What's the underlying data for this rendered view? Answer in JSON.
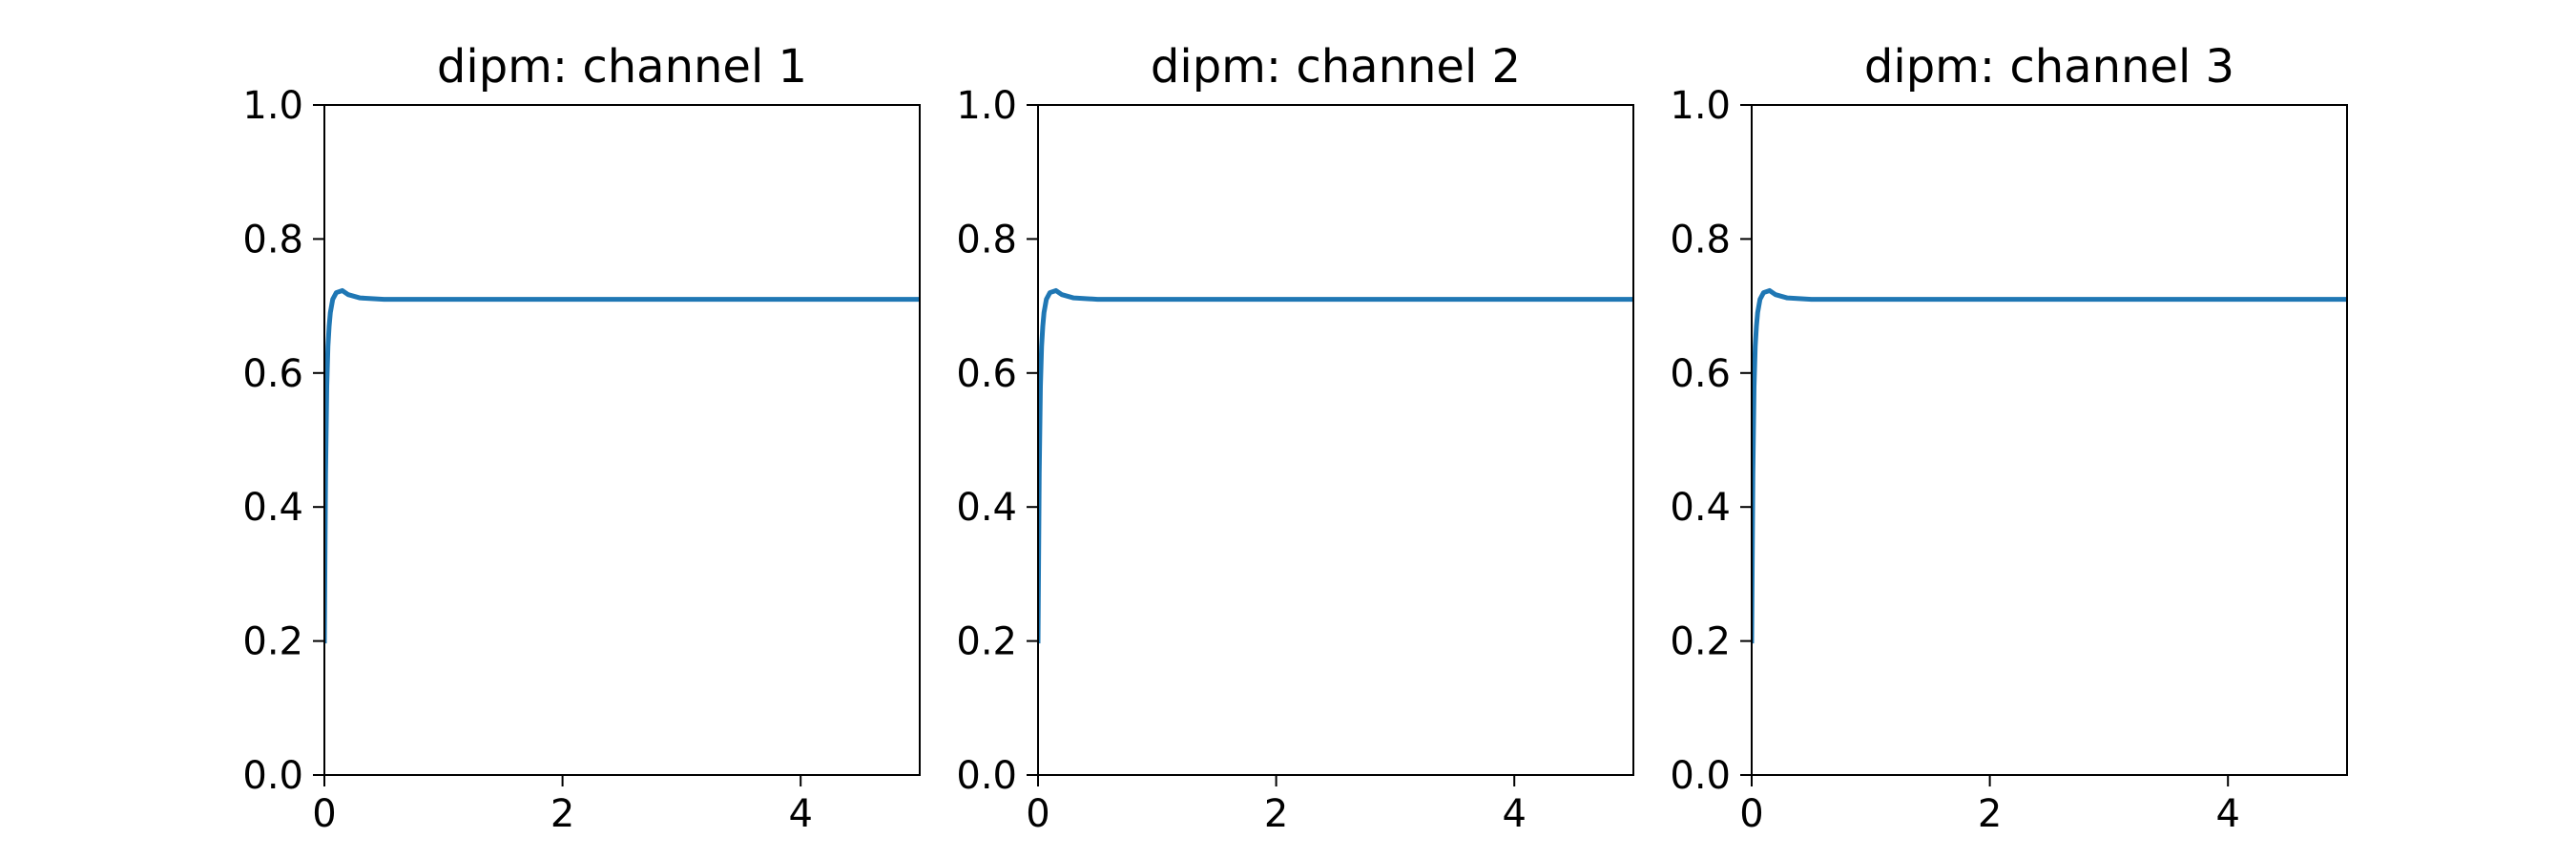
{
  "chart_data": [
    {
      "type": "line",
      "title": "dipm: channel 1",
      "xlabel": "",
      "ylabel": "",
      "xlim": [
        0,
        5
      ],
      "ylim": [
        0,
        1
      ],
      "xticks": [
        0,
        2,
        4
      ],
      "xtick_labels": [
        "0",
        "2",
        "4"
      ],
      "yticks": [
        0,
        0.2,
        0.4,
        0.6,
        0.8,
        1.0
      ],
      "ytick_labels": [
        "0.0",
        "0.2",
        "0.4",
        "0.6",
        "0.8",
        "1.0"
      ],
      "grid": false,
      "series": [
        {
          "color": "#1f77b4",
          "x": [
            0,
            0.01,
            0.02,
            0.03,
            0.04,
            0.05,
            0.07,
            0.1,
            0.15,
            0.2,
            0.3,
            0.5,
            1,
            2,
            3,
            4,
            5
          ],
          "y": [
            0.2,
            0.45,
            0.58,
            0.64,
            0.67,
            0.69,
            0.71,
            0.72,
            0.723,
            0.717,
            0.712,
            0.71,
            0.71,
            0.71,
            0.71,
            0.71,
            0.71
          ]
        }
      ]
    },
    {
      "type": "line",
      "title": "dipm: channel 2",
      "xlabel": "",
      "ylabel": "",
      "xlim": [
        0,
        5
      ],
      "ylim": [
        0,
        1
      ],
      "xticks": [
        0,
        2,
        4
      ],
      "xtick_labels": [
        "0",
        "2",
        "4"
      ],
      "yticks": [
        0,
        0.2,
        0.4,
        0.6,
        0.8,
        1.0
      ],
      "ytick_labels": [
        "0.0",
        "0.2",
        "0.4",
        "0.6",
        "0.8",
        "1.0"
      ],
      "grid": false,
      "series": [
        {
          "color": "#1f77b4",
          "x": [
            0,
            0.01,
            0.02,
            0.03,
            0.04,
            0.05,
            0.07,
            0.1,
            0.15,
            0.2,
            0.3,
            0.5,
            1,
            2,
            3,
            4,
            5
          ],
          "y": [
            0.2,
            0.45,
            0.58,
            0.64,
            0.67,
            0.69,
            0.71,
            0.72,
            0.723,
            0.717,
            0.712,
            0.71,
            0.71,
            0.71,
            0.71,
            0.71,
            0.71
          ]
        }
      ]
    },
    {
      "type": "line",
      "title": "dipm: channel 3",
      "xlabel": "",
      "ylabel": "",
      "xlim": [
        0,
        5
      ],
      "ylim": [
        0,
        1
      ],
      "xticks": [
        0,
        2,
        4
      ],
      "xtick_labels": [
        "0",
        "2",
        "4"
      ],
      "yticks": [
        0,
        0.2,
        0.4,
        0.6,
        0.8,
        1.0
      ],
      "ytick_labels": [
        "0.0",
        "0.2",
        "0.4",
        "0.6",
        "0.8",
        "1.0"
      ],
      "grid": false,
      "series": [
        {
          "color": "#1f77b4",
          "x": [
            0,
            0.01,
            0.02,
            0.03,
            0.04,
            0.05,
            0.07,
            0.1,
            0.15,
            0.2,
            0.3,
            0.5,
            1,
            2,
            3,
            4,
            5
          ],
          "y": [
            0.2,
            0.45,
            0.58,
            0.64,
            0.67,
            0.69,
            0.71,
            0.72,
            0.723,
            0.717,
            0.712,
            0.71,
            0.71,
            0.71,
            0.71,
            0.71,
            0.71
          ]
        }
      ]
    }
  ]
}
